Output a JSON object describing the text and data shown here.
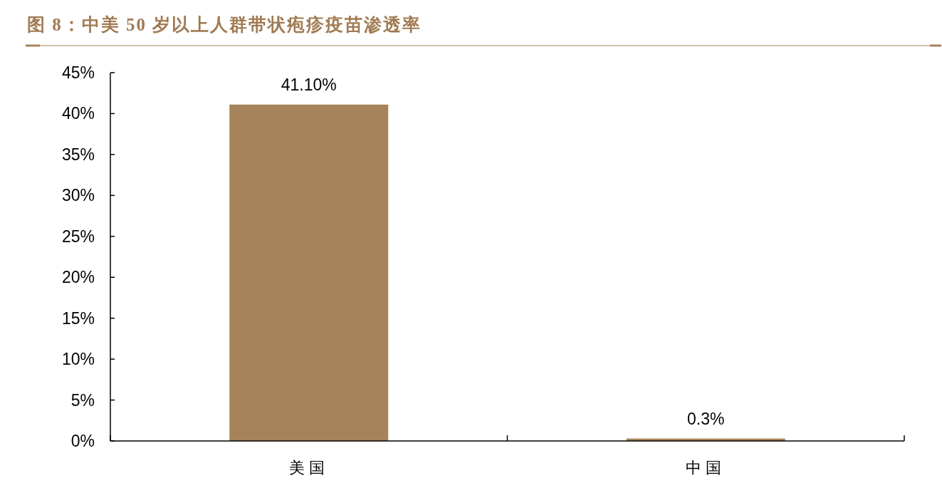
{
  "chart_data": {
    "type": "bar",
    "title": "图 8：中美 50 岁以上人群带状疱疹疫苗渗透率",
    "categories": [
      "美国",
      "中国"
    ],
    "values": [
      41.1,
      0.3
    ],
    "value_labels": [
      "41.10%",
      "0.3%"
    ],
    "color": "#a6835a",
    "ylim": [
      0,
      45
    ],
    "yticks": [
      {
        "value": 0,
        "label": "0%"
      },
      {
        "value": 5,
        "label": "5%"
      },
      {
        "value": 10,
        "label": "10%"
      },
      {
        "value": 15,
        "label": "15%"
      },
      {
        "value": 20,
        "label": "20%"
      },
      {
        "value": 25,
        "label": "25%"
      },
      {
        "value": 30,
        "label": "30%"
      },
      {
        "value": 35,
        "label": "35%"
      },
      {
        "value": 40,
        "label": "40%"
      },
      {
        "value": 45,
        "label": "45%"
      }
    ],
    "grid": false
  }
}
